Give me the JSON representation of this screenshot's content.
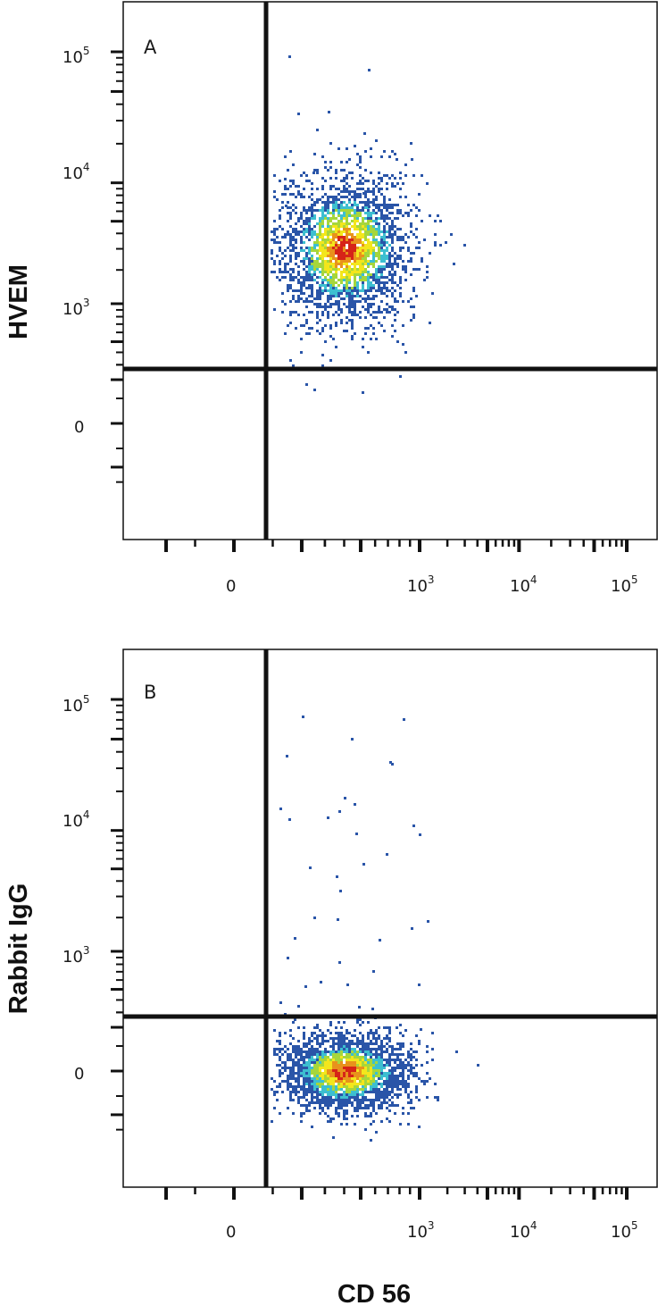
{
  "chart_data": [
    {
      "type": "scatter",
      "panel_label": "A",
      "xlabel": "",
      "ylabel": "HVEM",
      "x_scale": "biexponential",
      "y_scale": "biexponential",
      "x_ticks": [
        {
          "base": "0",
          "exp": ""
        },
        {
          "base": "10",
          "exp": "3"
        },
        {
          "base": "10",
          "exp": "4"
        },
        {
          "base": "10",
          "exp": "5"
        }
      ],
      "y_ticks": [
        {
          "base": "0",
          "exp": ""
        },
        {
          "base": "10",
          "exp": "3"
        },
        {
          "base": "10",
          "exp": "4"
        },
        {
          "base": "10",
          "exp": "5"
        }
      ],
      "quadrant_gate": {
        "x": 150,
        "y": 500
      },
      "population": {
        "center_x": 400,
        "center_y": 3100,
        "spread_x_decades": 0.22,
        "spread_y_decades": 0.2,
        "density": "high, HVEM positive"
      },
      "colormap": [
        "#2a55a8",
        "#3dbfd0",
        "#a6d63c",
        "#f3e61c",
        "#e8921c",
        "#d62418"
      ]
    },
    {
      "type": "scatter",
      "panel_label": "B",
      "xlabel": "CD 56",
      "ylabel": "Rabbit IgG",
      "x_scale": "biexponential",
      "y_scale": "biexponential",
      "x_ticks": [
        {
          "base": "0",
          "exp": ""
        },
        {
          "base": "10",
          "exp": "3"
        },
        {
          "base": "10",
          "exp": "4"
        },
        {
          "base": "10",
          "exp": "5"
        }
      ],
      "y_ticks": [
        {
          "base": "0",
          "exp": ""
        },
        {
          "base": "10",
          "exp": "3"
        },
        {
          "base": "10",
          "exp": "4"
        },
        {
          "base": "10",
          "exp": "5"
        }
      ],
      "quadrant_gate": {
        "x": 150,
        "y": 500
      },
      "population": {
        "center_x": 400,
        "center_y": 0,
        "spread_x_decades": 0.22,
        "spread_y_decades": 0.15,
        "density": "high, isotype negative"
      },
      "colormap": [
        "#2a55a8",
        "#3dbfd0",
        "#a6d63c",
        "#f3e61c",
        "#e8921c",
        "#d62418"
      ]
    }
  ]
}
